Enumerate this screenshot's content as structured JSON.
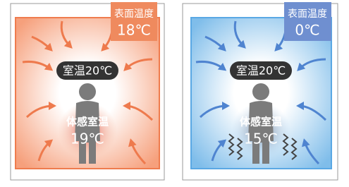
{
  "panels": [
    {
      "surface_label": "表面温度",
      "surface_temp": "18℃",
      "room_temp": "室温20℃",
      "felt_label": "体感室温",
      "felt_temp": "19℃"
    },
    {
      "surface_label": "表面温度",
      "surface_temp": "0℃",
      "room_temp": "室温20℃",
      "felt_label": "体感室温",
      "felt_temp": "15℃"
    }
  ]
}
